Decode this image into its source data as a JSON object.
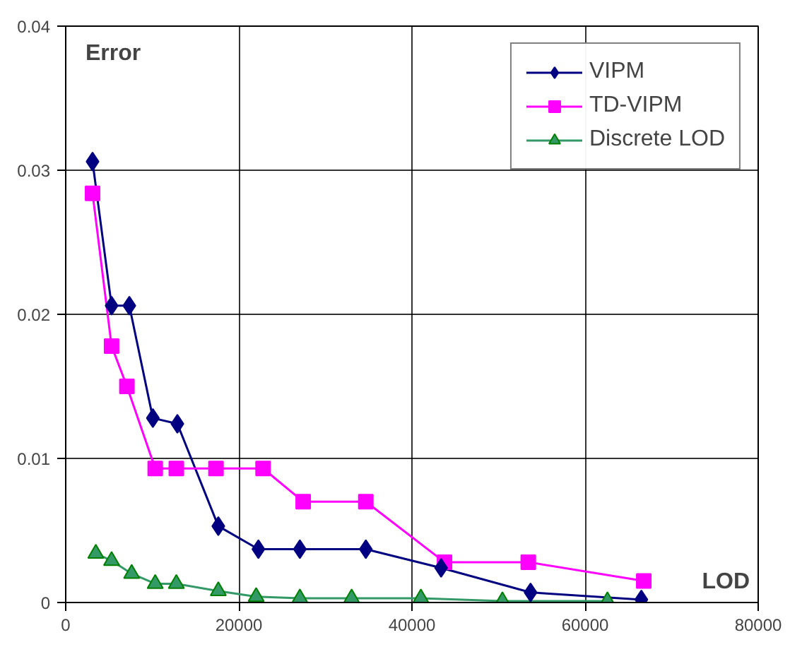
{
  "chart_data": {
    "type": "line",
    "xlabel": "LOD",
    "ylabel": "Error",
    "xlim": [
      0,
      80000
    ],
    "xticks": [
      0,
      20000,
      40000,
      60000,
      80000
    ],
    "ylim": [
      0,
      0.04
    ],
    "yticks": [
      0,
      0.01,
      0.02,
      0.03,
      0.04
    ],
    "grid": true,
    "legend": "top right",
    "line_style": "solid",
    "series": [
      {
        "name": "VIPM",
        "color": "#000080",
        "marker": "diamond",
        "x": [
          3100,
          5300,
          7350,
          10070,
          12900,
          17630,
          22260,
          27050,
          34670,
          43370,
          53700,
          66500
        ],
        "values": [
          0.0306,
          0.0206,
          0.0206,
          0.0128,
          0.0124,
          0.0053,
          0.0037,
          0.0037,
          0.0037,
          0.0024,
          0.0007,
          0.0002
        ]
      },
      {
        "name": "TD-VIPM",
        "color": "#ff00ff",
        "marker": "square",
        "x": [
          3100,
          5300,
          7070,
          10340,
          12780,
          17360,
          22800,
          27430,
          34670,
          43760,
          53440,
          66780
        ],
        "values": [
          0.0284,
          0.0178,
          0.015,
          0.0093,
          0.0093,
          0.0093,
          0.0093,
          0.007,
          0.007,
          0.0028,
          0.0028,
          0.0015
        ]
      },
      {
        "name": "Discrete LOD",
        "color": "#339966",
        "marker": "triangle",
        "x": [
          3480,
          5300,
          7620,
          10340,
          12780,
          17630,
          22000,
          27050,
          33030,
          41030,
          50450,
          62580
        ],
        "values": [
          0.0034,
          0.0029,
          0.002,
          0.0013,
          0.0013,
          0.0008,
          0.0004,
          0.0003,
          0.0003,
          0.0003,
          0.0001,
          0.0001
        ]
      }
    ]
  }
}
